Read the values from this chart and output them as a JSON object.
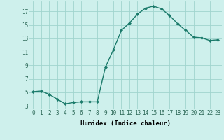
{
  "x": [
    0,
    1,
    2,
    3,
    4,
    5,
    6,
    7,
    8,
    9,
    10,
    11,
    12,
    13,
    14,
    15,
    16,
    17,
    18,
    19,
    20,
    21,
    22,
    23
  ],
  "y": [
    5.1,
    5.2,
    4.7,
    4.0,
    3.3,
    3.5,
    3.6,
    3.6,
    3.6,
    8.7,
    11.3,
    14.2,
    15.3,
    16.6,
    17.5,
    17.8,
    17.4,
    16.4,
    15.2,
    14.2,
    13.2,
    13.1,
    12.7,
    12.8
  ],
  "line_color": "#1a7a6a",
  "marker": "D",
  "marker_size": 2.0,
  "bg_color": "#cef0ec",
  "grid_color": "#a0d4ce",
  "xlabel": "Humidex (Indice chaleur)",
  "xlim": [
    -0.5,
    23.5
  ],
  "ylim": [
    2.5,
    18.5
  ],
  "yticks": [
    3,
    5,
    7,
    9,
    11,
    13,
    15,
    17
  ],
  "xticks": [
    0,
    1,
    2,
    3,
    4,
    5,
    6,
    7,
    8,
    9,
    10,
    11,
    12,
    13,
    14,
    15,
    16,
    17,
    18,
    19,
    20,
    21,
    22,
    23
  ],
  "label_fontsize": 6.5,
  "tick_fontsize": 5.5
}
